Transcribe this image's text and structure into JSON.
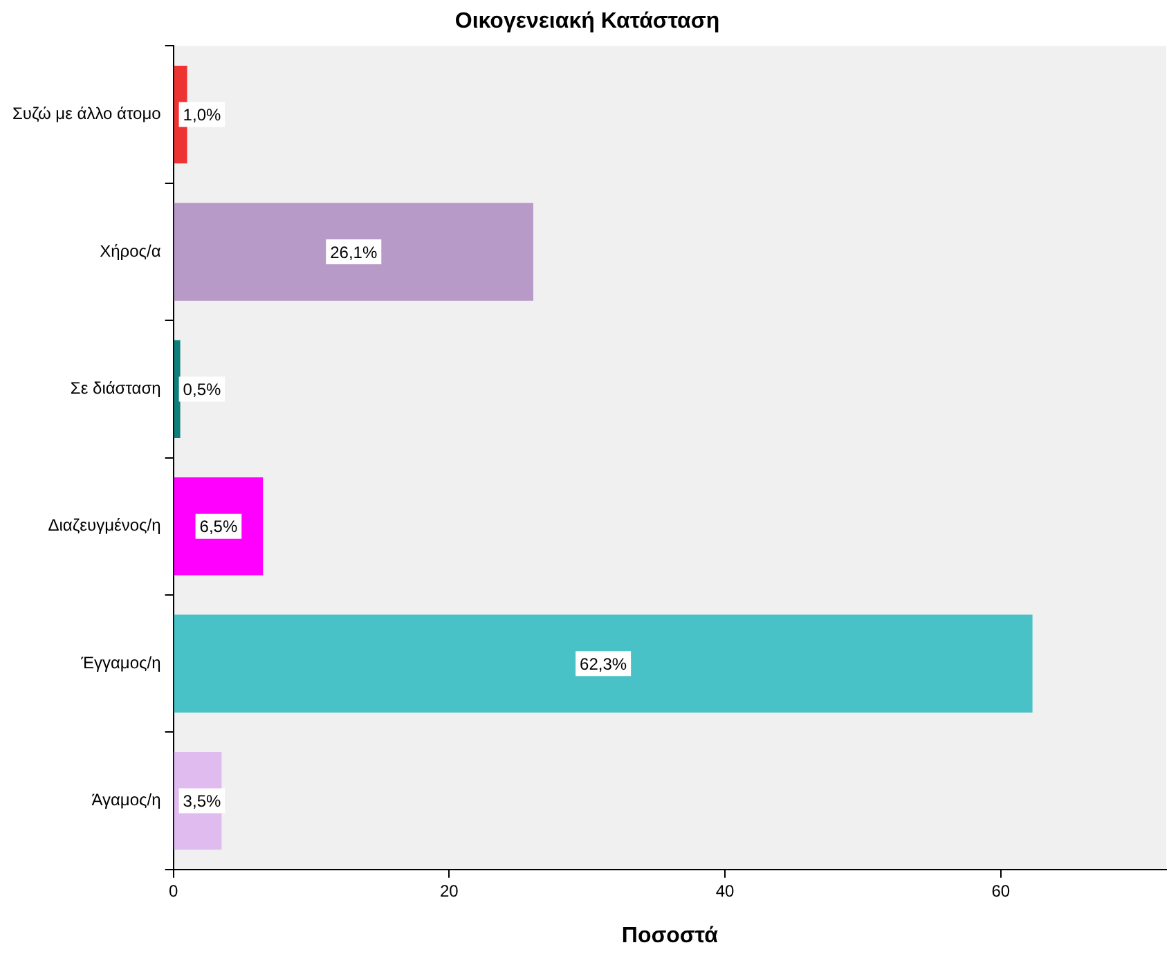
{
  "chart_data": {
    "type": "bar",
    "orientation": "horizontal",
    "title": "Οικογενειακή Κατάσταση",
    "xlabel": "Ποσοστά",
    "categories": [
      "Συζώ με άλλο άτομο",
      "Χήρος/α",
      "Σε διάσταση",
      "Διαζευγμένος/η",
      "Έγγαμος/η",
      "Άγαμος/η"
    ],
    "values": [
      1.0,
      26.1,
      0.5,
      6.5,
      62.3,
      3.5
    ],
    "colors": [
      "#ee3333",
      "#b89ac8",
      "#0e7f7c",
      "#ff00ff",
      "#48c2c6",
      "#dfbbf0"
    ],
    "value_labels": [
      "1,0%",
      "26,1%",
      "0,5%",
      "6,5%",
      "62,3%",
      "3,5%"
    ],
    "xlim": [
      0,
      72
    ],
    "xticks": [
      0,
      20,
      40,
      60
    ],
    "grid": false,
    "legend": false
  }
}
